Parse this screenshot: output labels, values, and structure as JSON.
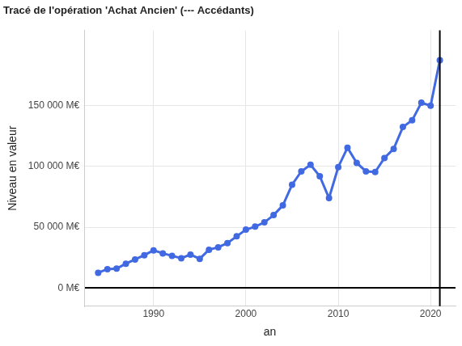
{
  "chart_data": {
    "type": "line",
    "title": "Tracé de l'opération 'Achat Ancien' (--- Accédants)",
    "x_label": "an",
    "y_label": "Niveau en valeur",
    "x": [
      1984,
      1985,
      1986,
      1987,
      1988,
      1989,
      1990,
      1991,
      1992,
      1993,
      1994,
      1995,
      1996,
      1997,
      1998,
      1999,
      2000,
      2001,
      2002,
      2003,
      2004,
      2005,
      2006,
      2007,
      2008,
      2009,
      2010,
      2011,
      2012,
      2013,
      2014,
      2015,
      2016,
      2017,
      2018,
      2019,
      2020,
      2021
    ],
    "values": [
      12500,
      15500,
      16000,
      20000,
      23500,
      27000,
      31000,
      28500,
      26500,
      24500,
      27500,
      24000,
      31500,
      33500,
      37000,
      42500,
      48000,
      50500,
      54000,
      60000,
      68000,
      85000,
      96000,
      101500,
      92000,
      74000,
      99500,
      115500,
      103000,
      96000,
      95500,
      107000,
      114500,
      132500,
      138000,
      152500,
      150000,
      187500
    ],
    "color": "#4169e1",
    "marker": "circle",
    "line_style": "solid",
    "xlim": [
      1982.5,
      2022.7
    ],
    "xticks": [
      1990,
      2000,
      2010,
      2020
    ],
    "ylim": [
      -15000,
      212000
    ],
    "yticks": [
      {
        "value": 0,
        "label": "0 M€"
      },
      {
        "value": 50000,
        "label": "50 000 M€"
      },
      {
        "value": 100000,
        "label": "100 000 M€"
      },
      {
        "value": 150000,
        "label": "150 000 M€"
      }
    ],
    "vline": 2021,
    "grid": true
  }
}
